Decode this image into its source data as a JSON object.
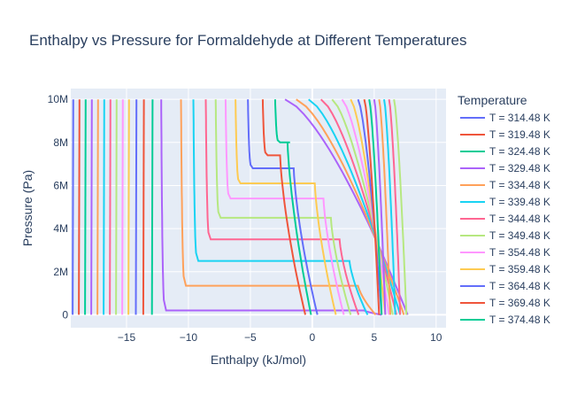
{
  "chart_data": {
    "type": "line",
    "title": "Enthalpy vs Pressure for Formaldehyde at Different Temperatures",
    "xlabel": "Enthalpy (kJ/mol)",
    "ylabel": "Pressure (Pa)",
    "xlim": [
      -19.5,
      10.8
    ],
    "ylim": [
      -600000,
      10500000
    ],
    "x_ticks": [
      -15,
      -10,
      -5,
      0,
      5,
      10
    ],
    "x_tick_labels": [
      "−15",
      "−10",
      "−5",
      "0",
      "5",
      "10"
    ],
    "y_ticks": [
      0,
      2000000,
      4000000,
      6000000,
      8000000,
      10000000
    ],
    "y_tick_labels": [
      "0",
      "2M",
      "4M",
      "6M",
      "8M",
      "10M"
    ],
    "grid": true,
    "legend_title": "Temperature",
    "legend_position": "right",
    "series": [
      {
        "name": "T = 314.48 K",
        "color": "#636efa"
      },
      {
        "name": "T = 319.48 K",
        "color": "#EF553B"
      },
      {
        "name": "T = 324.48 K",
        "color": "#00cc96"
      },
      {
        "name": "T = 329.48 K",
        "color": "#ab63fa"
      },
      {
        "name": "T = 334.48 K",
        "color": "#FFA15A"
      },
      {
        "name": "T = 339.48 K",
        "color": "#19d3f3"
      },
      {
        "name": "T = 344.48 K",
        "color": "#FF6692"
      },
      {
        "name": "T = 349.48 K",
        "color": "#B6E880"
      },
      {
        "name": "T = 354.48 K",
        "color": "#FF97FF"
      },
      {
        "name": "T = 359.48 K",
        "color": "#FECB52"
      },
      {
        "name": "T = 364.48 K",
        "color": "#636efa"
      },
      {
        "name": "T = 369.48 K",
        "color": "#EF553B"
      },
      {
        "name": "T = 374.48 K",
        "color": "#00cc96"
      }
    ],
    "curves": [
      {
        "color": "#636efa",
        "liquid_h": -19.3,
        "plateau_p": null,
        "gas_h_low": null,
        "gas_h_high": null
      },
      {
        "color": "#EF553B",
        "liquid_h": -18.8,
        "plateau_p": null,
        "gas_h_low": null,
        "gas_h_high": null
      },
      {
        "color": "#00cc96",
        "liquid_h": -18.3,
        "plateau_p": null,
        "gas_h_low": null,
        "gas_h_high": null
      },
      {
        "color": "#ab63fa",
        "liquid_h": -17.8,
        "plateau_p": null,
        "gas_h_low": null,
        "gas_h_high": null
      },
      {
        "color": "#FFA15A",
        "liquid_h": -17.3,
        "plateau_p": null,
        "gas_h_low": null,
        "gas_h_high": null
      },
      {
        "color": "#19d3f3",
        "liquid_h": -16.8,
        "plateau_p": null,
        "gas_h_low": null,
        "gas_h_high": null
      },
      {
        "color": "#FF6692",
        "liquid_h": -16.3,
        "plateau_p": null,
        "gas_h_low": null,
        "gas_h_high": null
      },
      {
        "color": "#B6E880",
        "liquid_h": -15.8,
        "plateau_p": null,
        "gas_h_low": null,
        "gas_h_high": null
      },
      {
        "color": "#FF97FF",
        "liquid_h": -15.3,
        "plateau_p": null,
        "gas_h_low": null,
        "gas_h_high": null
      },
      {
        "color": "#FECB52",
        "liquid_h": -14.8,
        "plateau_p": null,
        "gas_h_low": null,
        "gas_h_high": null
      },
      {
        "color": "#636efa",
        "liquid_h": -14.2,
        "plateau_p": null,
        "gas_h_low": null,
        "gas_h_high": null
      },
      {
        "color": "#EF553B",
        "liquid_h": -13.6,
        "plateau_p": null,
        "gas_h_low": null,
        "gas_h_high": null
      },
      {
        "color": "#00cc96",
        "liquid_h": -12.9,
        "plateau_p": null,
        "gas_h_low": null,
        "gas_h_high": null
      },
      {
        "color": "#ab63fa",
        "liquid_h": -12.2,
        "plateau_p": 200000,
        "gas_h_low": 4.2,
        "gas_h_high": 10.8
      },
      {
        "color": "#FFA15A",
        "liquid_h": -10.6,
        "plateau_p": 1350000,
        "gas_h_low": 3.7,
        "gas_h_high": 10.5
      },
      {
        "color": "#19d3f3",
        "liquid_h": -9.6,
        "plateau_p": 2500000,
        "gas_h_low": 3.0,
        "gas_h_high": 10.1
      },
      {
        "color": "#FF6692",
        "liquid_h": -8.6,
        "plateau_p": 3500000,
        "gas_h_low": 2.2,
        "gas_h_high": 9.8
      },
      {
        "color": "#B6E880",
        "liquid_h": -7.8,
        "plateau_p": 4500000,
        "gas_h_low": 1.5,
        "gas_h_high": 9.5
      },
      {
        "color": "#FF97FF",
        "liquid_h": -7.0,
        "plateau_p": 5400000,
        "gas_h_low": 0.9,
        "gas_h_high": 9.2
      },
      {
        "color": "#FECB52",
        "liquid_h": -6.2,
        "plateau_p": 6100000,
        "gas_h_low": 0.2,
        "gas_h_high": 8.9
      },
      {
        "color": "#636efa",
        "liquid_h": -5.2,
        "plateau_p": 6800000,
        "gas_h_low": -1.5,
        "gas_h_high": 8.6
      },
      {
        "color": "#EF553B",
        "liquid_h": -4.0,
        "plateau_p": 7400000,
        "gas_h_low": -2.6,
        "gas_h_high": 8.3
      },
      {
        "color": "#00cc96",
        "liquid_h": -3.0,
        "plateau_p": 8000000,
        "gas_h_low": -2.0,
        "gas_h_high": 8.0
      },
      {
        "color": "#ab63fa",
        "liquid_h": -2.2,
        "plateau_p": null,
        "gas_h_low": null,
        "gas_h_high": 7.7
      },
      {
        "color": "#FFA15A",
        "liquid_h": -1.3,
        "plateau_p": null,
        "gas_h_low": null,
        "gas_h_high": 7.4
      },
      {
        "color": "#19d3f3",
        "liquid_h": -0.3,
        "plateau_p": null,
        "gas_h_low": null,
        "gas_h_high": 7.1
      },
      {
        "color": "#FF6692",
        "liquid_h": 0.7,
        "plateau_p": null,
        "gas_h_low": null,
        "gas_h_high": 6.8
      },
      {
        "color": "#B6E880",
        "liquid_h": 1.6,
        "plateau_p": null,
        "gas_h_low": null,
        "gas_h_high": 6.5
      },
      {
        "color": "#FF97FF",
        "liquid_h": 2.4,
        "plateau_p": null,
        "gas_h_low": null,
        "gas_h_high": 6.2
      },
      {
        "color": "#FECB52",
        "liquid_h": 3.1,
        "plateau_p": null,
        "gas_h_low": null,
        "gas_h_high": 5.9
      },
      {
        "color": "#636efa",
        "liquid_h": 3.7,
        "plateau_p": null,
        "gas_h_low": null,
        "gas_h_high": 5.6
      },
      {
        "color": "#EF553B",
        "liquid_h": 4.2,
        "plateau_p": null,
        "gas_h_low": null,
        "gas_h_high": 5.4
      },
      {
        "color": "#00cc96",
        "liquid_h": 4.6,
        "plateau_p": null,
        "gas_h_low": null,
        "gas_h_high": 5.6
      },
      {
        "color": "#ab63fa",
        "liquid_h": 5.0,
        "plateau_p": null,
        "gas_h_low": null,
        "gas_h_high": 5.9
      },
      {
        "color": "#FFA15A",
        "liquid_h": 5.4,
        "plateau_p": null,
        "gas_h_low": null,
        "gas_h_high": 6.3
      },
      {
        "color": "#19d3f3",
        "liquid_h": 5.8,
        "plateau_p": null,
        "gas_h_low": null,
        "gas_h_high": 6.7
      },
      {
        "color": "#FF6692",
        "liquid_h": 6.2,
        "plateau_p": null,
        "gas_h_low": null,
        "gas_h_high": 7.1
      },
      {
        "color": "#B6E880",
        "liquid_h": 6.6,
        "plateau_p": null,
        "gas_h_low": null,
        "gas_h_high": 7.6
      }
    ]
  }
}
